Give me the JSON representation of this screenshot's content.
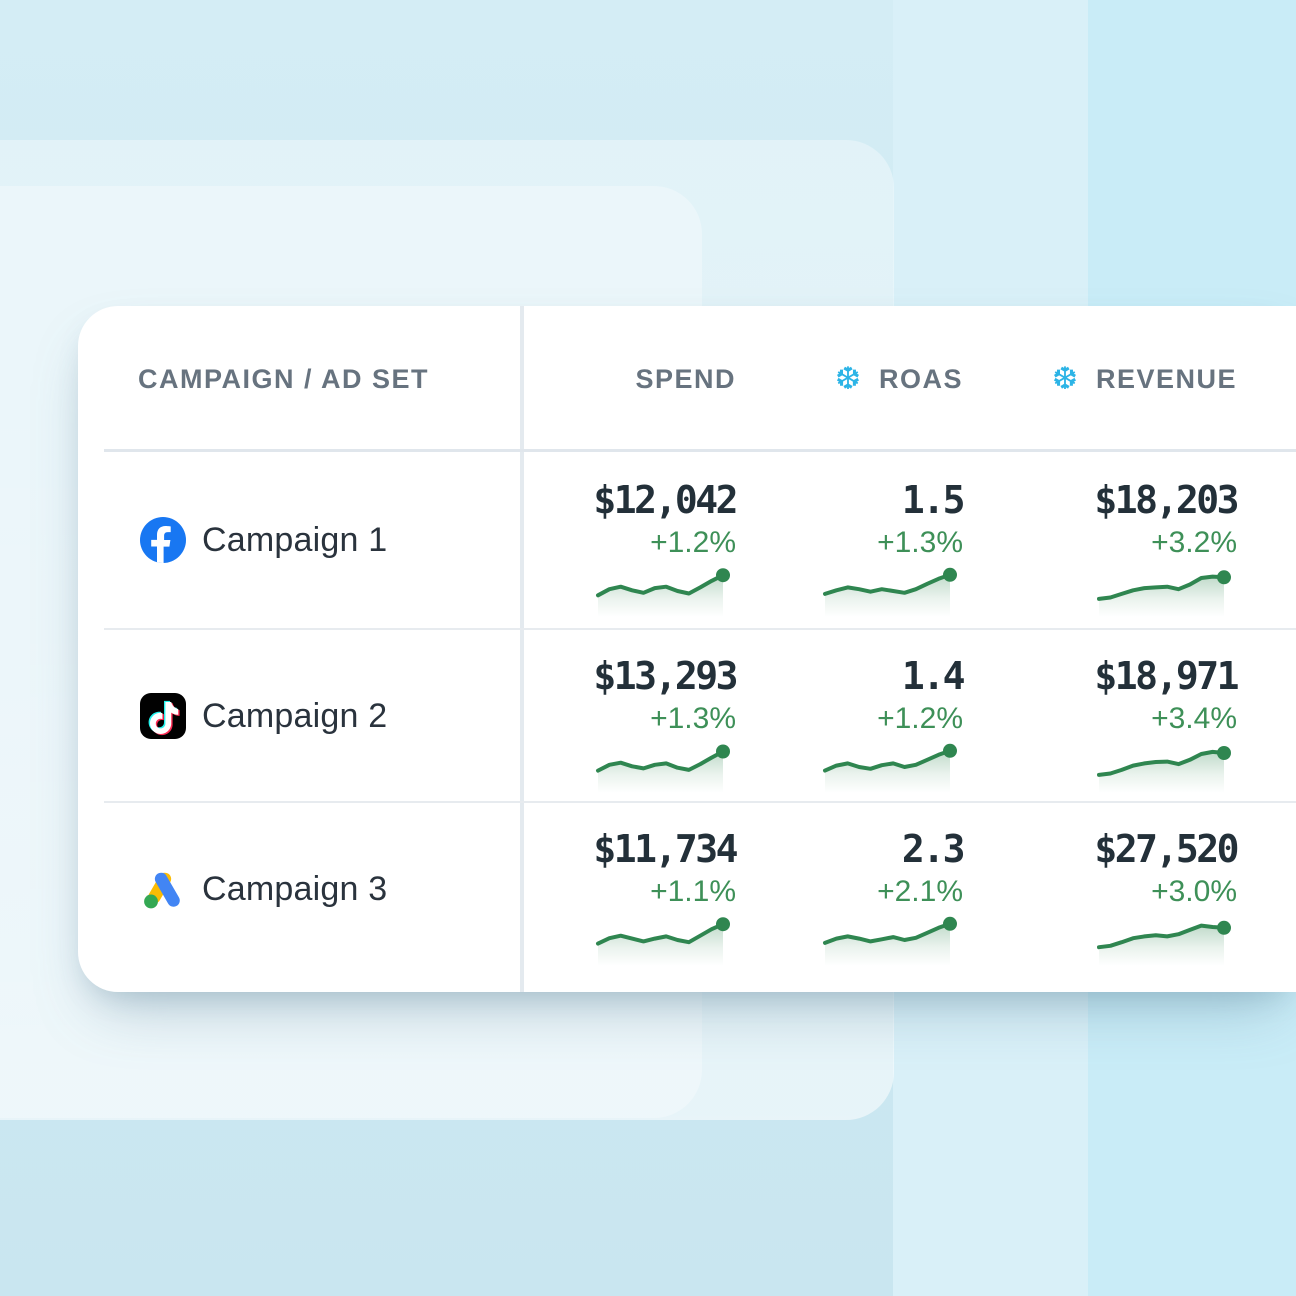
{
  "icons": {
    "snowflake_glyph": "❆"
  },
  "colors": {
    "background_blue": "#cfeaf3",
    "band_mid": "#d9f0f8",
    "band_right": "#c9ecf7",
    "card_white": "#ffffff",
    "header_gray": "#67737f",
    "label_dark": "#2a333d",
    "value_dark": "#233039",
    "delta_green": "#3e9058",
    "spark_line": "#2f8650",
    "spark_fill": "#2f8650",
    "snowflake_blue": "#2cb4e6",
    "facebook_blue": "#1877F2",
    "tiktok_black": "#000000",
    "tiktok_cyan": "#25F4EE",
    "tiktok_red": "#FE2C55",
    "google_yellow": "#FBBC04",
    "google_blue": "#4285F4",
    "google_green": "#34A853"
  },
  "table": {
    "columns": [
      {
        "label": "CAMPAIGN / AD SET",
        "icon": null
      },
      {
        "label": "SPEND",
        "icon": null
      },
      {
        "label": "ROAS",
        "icon": "snowflake"
      },
      {
        "label": "REVENUE",
        "icon": "snowflake"
      }
    ],
    "rows": [
      {
        "platform": "facebook",
        "name": "Campaign 1",
        "spend": {
          "value": "$12,042",
          "delta": "+1.2%",
          "spark": [
            62,
            45,
            38,
            48,
            55,
            42,
            38,
            50,
            57,
            40,
            22,
            6
          ]
        },
        "roas": {
          "value": "1.5",
          "delta": "+1.3%",
          "spark": [
            58,
            48,
            40,
            45,
            52,
            45,
            50,
            55,
            45,
            30,
            16,
            5
          ]
        },
        "revenue": {
          "value": "$18,203",
          "delta": "+3.2%",
          "spark": [
            72,
            68,
            58,
            48,
            42,
            40,
            38,
            45,
            32,
            14,
            10,
            12
          ]
        }
      },
      {
        "platform": "tiktok",
        "name": "Campaign 2",
        "spend": {
          "value": "$13,293",
          "delta": "+1.3%",
          "spark": [
            60,
            44,
            38,
            48,
            54,
            44,
            40,
            52,
            58,
            42,
            24,
            7
          ]
        },
        "roas": {
          "value": "1.4",
          "delta": "+1.2%",
          "spark": [
            60,
            46,
            40,
            50,
            55,
            45,
            40,
            50,
            44,
            30,
            16,
            5
          ]
        },
        "revenue": {
          "value": "$18,971",
          "delta": "+3.4%",
          "spark": [
            72,
            68,
            58,
            46,
            40,
            36,
            35,
            42,
            30,
            14,
            8,
            11
          ]
        }
      },
      {
        "platform": "google-ads",
        "name": "Campaign 3",
        "spend": {
          "value": "$11,734",
          "delta": "+1.1%",
          "spark": [
            60,
            45,
            38,
            46,
            54,
            46,
            40,
            50,
            56,
            38,
            20,
            6
          ]
        },
        "roas": {
          "value": "2.3",
          "delta": "+2.1%",
          "spark": [
            58,
            46,
            40,
            46,
            54,
            48,
            42,
            50,
            44,
            30,
            16,
            5
          ]
        },
        "revenue": {
          "value": "$27,520",
          "delta": "+3.0%",
          "spark": [
            70,
            66,
            56,
            45,
            40,
            37,
            40,
            34,
            22,
            10,
            14,
            16
          ]
        }
      }
    ]
  }
}
